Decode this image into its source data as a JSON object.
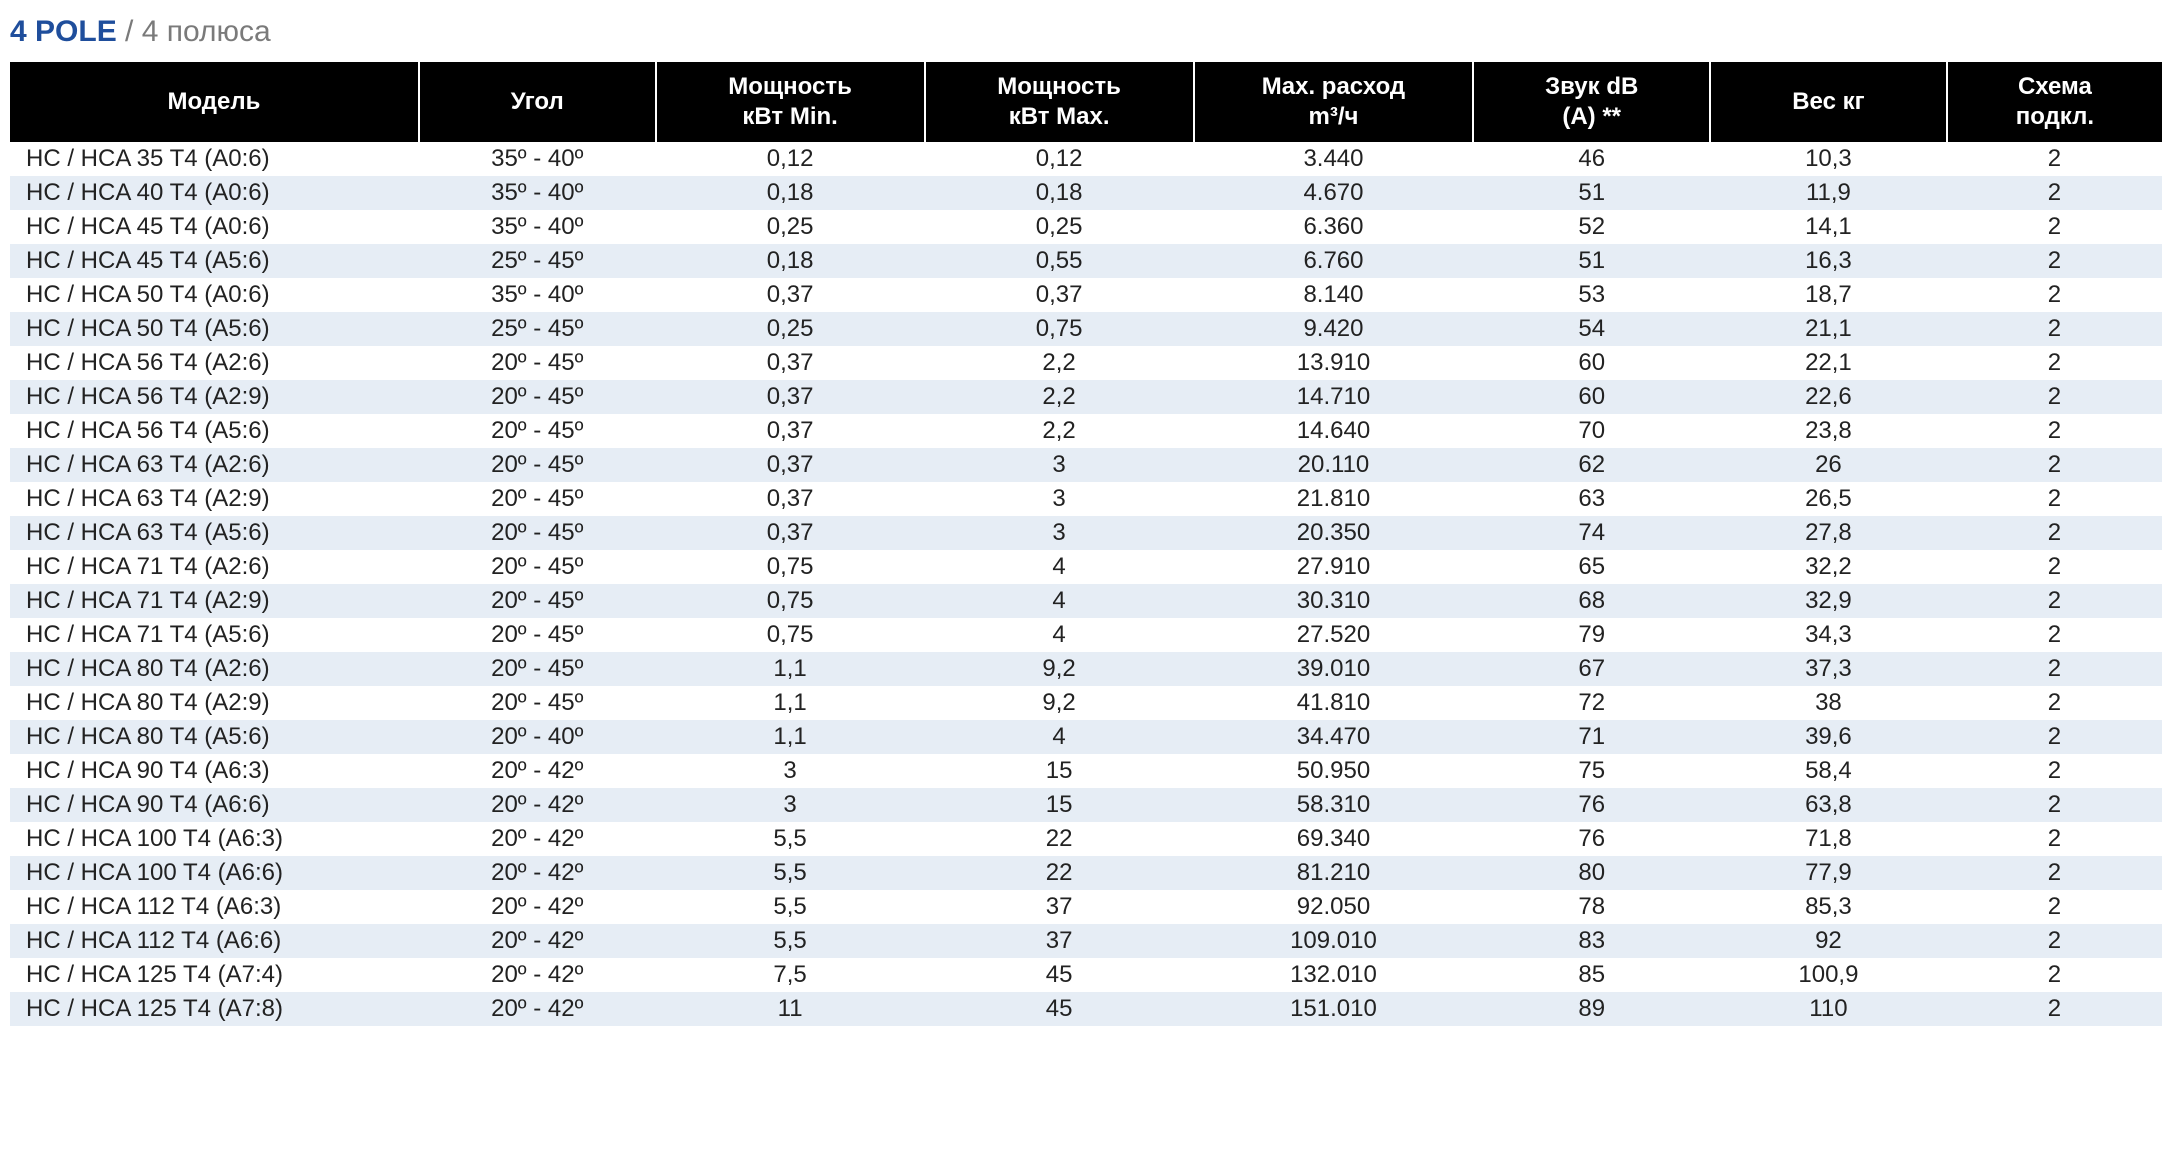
{
  "title": {
    "bold": "4 POLE",
    "sep": " / ",
    "light": "4 полюса"
  },
  "table": {
    "type": "table",
    "background_color": "#ffffff",
    "header_bg": "#000000",
    "header_fg": "#ffffff",
    "row_colors": {
      "even": "#ffffff",
      "odd": "#e6edf5"
    },
    "font_size_header": 24,
    "font_size_cell": 24,
    "columns": [
      {
        "key": "model",
        "label_l1": "Модель",
        "label_l2": "",
        "align": "left",
        "width_pct": 19
      },
      {
        "key": "angle",
        "label_l1": "Угол",
        "label_l2": "",
        "align": "center",
        "width_pct": 11
      },
      {
        "key": "pmin",
        "label_l1": "Мощность",
        "label_l2": "кВт Min.",
        "align": "center",
        "width_pct": 12.5
      },
      {
        "key": "pmax",
        "label_l1": "Мощность",
        "label_l2": "кВт Max.",
        "align": "center",
        "width_pct": 12.5
      },
      {
        "key": "flow",
        "label_l1": "Max. расход",
        "label_l2": "m³/ч",
        "align": "center",
        "width_pct": 13
      },
      {
        "key": "sound",
        "label_l1": "Звук dB",
        "label_l2": "(A) **",
        "align": "center",
        "width_pct": 11
      },
      {
        "key": "weight",
        "label_l1": "Вес кг",
        "label_l2": "",
        "align": "center",
        "width_pct": 11
      },
      {
        "key": "scheme",
        "label_l1": "Схема",
        "label_l2": "подкл.",
        "align": "center",
        "width_pct": 10
      }
    ],
    "rows": [
      {
        "model": "HC / HCA 35 T4 (A0:6)",
        "angle": "35º - 40º",
        "pmin": "0,12",
        "pmax": "0,12",
        "flow": "3.440",
        "sound": "46",
        "weight": "10,3",
        "scheme": "2"
      },
      {
        "model": "HC / HCA 40 T4 (A0:6)",
        "angle": "35º - 40º",
        "pmin": "0,18",
        "pmax": "0,18",
        "flow": "4.670",
        "sound": "51",
        "weight": "11,9",
        "scheme": "2"
      },
      {
        "model": "HC / HCA 45 T4 (A0:6)",
        "angle": "35º - 40º",
        "pmin": "0,25",
        "pmax": "0,25",
        "flow": "6.360",
        "sound": "52",
        "weight": "14,1",
        "scheme": "2"
      },
      {
        "model": "HC / HCA 45 T4 (A5:6)",
        "angle": "25º - 45º",
        "pmin": "0,18",
        "pmax": "0,55",
        "flow": "6.760",
        "sound": "51",
        "weight": "16,3",
        "scheme": "2"
      },
      {
        "model": "HC / HCA 50 T4 (A0:6)",
        "angle": "35º - 40º",
        "pmin": "0,37",
        "pmax": "0,37",
        "flow": "8.140",
        "sound": "53",
        "weight": "18,7",
        "scheme": "2"
      },
      {
        "model": "HC / HCA 50 T4 (A5:6)",
        "angle": "25º - 45º",
        "pmin": "0,25",
        "pmax": "0,75",
        "flow": "9.420",
        "sound": "54",
        "weight": "21,1",
        "scheme": "2"
      },
      {
        "model": "HC / HCA 56 T4 (A2:6)",
        "angle": "20º - 45º",
        "pmin": "0,37",
        "pmax": "2,2",
        "flow": "13.910",
        "sound": "60",
        "weight": "22,1",
        "scheme": "2"
      },
      {
        "model": "HC / HCA 56 T4 (A2:9)",
        "angle": "20º - 45º",
        "pmin": "0,37",
        "pmax": "2,2",
        "flow": "14.710",
        "sound": "60",
        "weight": "22,6",
        "scheme": "2"
      },
      {
        "model": "HC / HCA 56 T4 (A5:6)",
        "angle": "20º - 45º",
        "pmin": "0,37",
        "pmax": "2,2",
        "flow": "14.640",
        "sound": "70",
        "weight": "23,8",
        "scheme": "2"
      },
      {
        "model": "HC / HCA 63 T4 (A2:6)",
        "angle": "20º - 45º",
        "pmin": "0,37",
        "pmax": "3",
        "flow": "20.110",
        "sound": "62",
        "weight": "26",
        "scheme": "2"
      },
      {
        "model": "HC / HCA 63 T4 (A2:9)",
        "angle": "20º - 45º",
        "pmin": "0,37",
        "pmax": "3",
        "flow": "21.810",
        "sound": "63",
        "weight": "26,5",
        "scheme": "2"
      },
      {
        "model": "HC / HCA 63 T4 (A5:6)",
        "angle": "20º - 45º",
        "pmin": "0,37",
        "pmax": "3",
        "flow": "20.350",
        "sound": "74",
        "weight": "27,8",
        "scheme": "2"
      },
      {
        "model": "HC / HCA 71 T4 (A2:6)",
        "angle": "20º - 45º",
        "pmin": "0,75",
        "pmax": "4",
        "flow": "27.910",
        "sound": "65",
        "weight": "32,2",
        "scheme": "2"
      },
      {
        "model": "HC / HCA 71 T4 (A2:9)",
        "angle": "20º - 45º",
        "pmin": "0,75",
        "pmax": "4",
        "flow": "30.310",
        "sound": "68",
        "weight": "32,9",
        "scheme": "2"
      },
      {
        "model": "HC / HCA 71 T4 (A5:6)",
        "angle": "20º - 45º",
        "pmin": "0,75",
        "pmax": "4",
        "flow": "27.520",
        "sound": "79",
        "weight": "34,3",
        "scheme": "2"
      },
      {
        "model": "HC / HCA 80 T4 (A2:6)",
        "angle": "20º - 45º",
        "pmin": "1,1",
        "pmax": "9,2",
        "flow": "39.010",
        "sound": "67",
        "weight": "37,3",
        "scheme": "2"
      },
      {
        "model": "HC / HCA 80 T4 (A2:9)",
        "angle": "20º - 45º",
        "pmin": "1,1",
        "pmax": "9,2",
        "flow": "41.810",
        "sound": "72",
        "weight": "38",
        "scheme": "2"
      },
      {
        "model": "HC / HCA 80 T4 (A5:6)",
        "angle": "20º - 40º",
        "pmin": "1,1",
        "pmax": "4",
        "flow": "34.470",
        "sound": "71",
        "weight": "39,6",
        "scheme": "2"
      },
      {
        "model": "HC / HCA 90 T4 (A6:3)",
        "angle": "20º - 42º",
        "pmin": "3",
        "pmax": "15",
        "flow": "50.950",
        "sound": "75",
        "weight": "58,4",
        "scheme": "2"
      },
      {
        "model": "HC / HCA 90 T4 (A6:6)",
        "angle": "20º - 42º",
        "pmin": "3",
        "pmax": "15",
        "flow": "58.310",
        "sound": "76",
        "weight": "63,8",
        "scheme": "2"
      },
      {
        "model": "HC / HCA 100 T4 (A6:3)",
        "angle": "20º - 42º",
        "pmin": "5,5",
        "pmax": "22",
        "flow": "69.340",
        "sound": "76",
        "weight": "71,8",
        "scheme": "2"
      },
      {
        "model": "HC / HCA 100 T4 (A6:6)",
        "angle": "20º - 42º",
        "pmin": "5,5",
        "pmax": "22",
        "flow": "81.210",
        "sound": "80",
        "weight": "77,9",
        "scheme": "2"
      },
      {
        "model": "HC / HCA 112 T4 (A6:3)",
        "angle": "20º - 42º",
        "pmin": "5,5",
        "pmax": "37",
        "flow": "92.050",
        "sound": "78",
        "weight": "85,3",
        "scheme": "2"
      },
      {
        "model": "HC / HCA 112 T4 (A6:6)",
        "angle": "20º - 42º",
        "pmin": "5,5",
        "pmax": "37",
        "flow": "109.010",
        "sound": "83",
        "weight": "92",
        "scheme": "2"
      },
      {
        "model": "HC / HCA 125 T4 (A7:4)",
        "angle": "20º - 42º",
        "pmin": "7,5",
        "pmax": "45",
        "flow": "132.010",
        "sound": "85",
        "weight": "100,9",
        "scheme": "2"
      },
      {
        "model": "HC / HCA 125 T4 (A7:8)",
        "angle": "20º - 42º",
        "pmin": "11",
        "pmax": "45",
        "flow": "151.010",
        "sound": "89",
        "weight": "110",
        "scheme": "2"
      }
    ]
  }
}
